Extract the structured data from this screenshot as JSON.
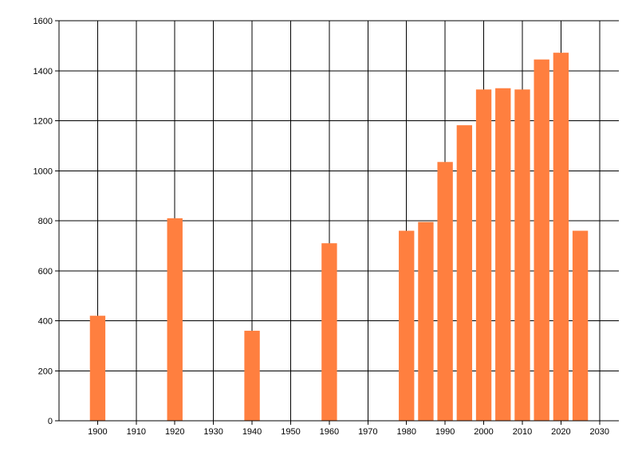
{
  "chart_data": {
    "type": "bar",
    "title": "",
    "xlabel": "",
    "ylabel": "",
    "x": [
      1900,
      1920,
      1940,
      1960,
      1980,
      1985,
      1990,
      1995,
      2000,
      2005,
      2010,
      2015,
      2020,
      2025
    ],
    "values": [
      420,
      810,
      360,
      710,
      760,
      795,
      1035,
      1182,
      1325,
      1330,
      1325,
      1445,
      1472,
      760
    ],
    "xlim": [
      1890,
      2035
    ],
    "ylim": [
      0,
      1600
    ],
    "x_ticks": [
      1900,
      1910,
      1920,
      1930,
      1940,
      1950,
      1960,
      1970,
      1980,
      1990,
      2000,
      2010,
      2020,
      2030
    ],
    "y_ticks": [
      0,
      200,
      400,
      600,
      800,
      1000,
      1200,
      1400,
      1600
    ],
    "grid": true,
    "bar_color": "#ff7f3f",
    "grid_color": "#000000"
  }
}
